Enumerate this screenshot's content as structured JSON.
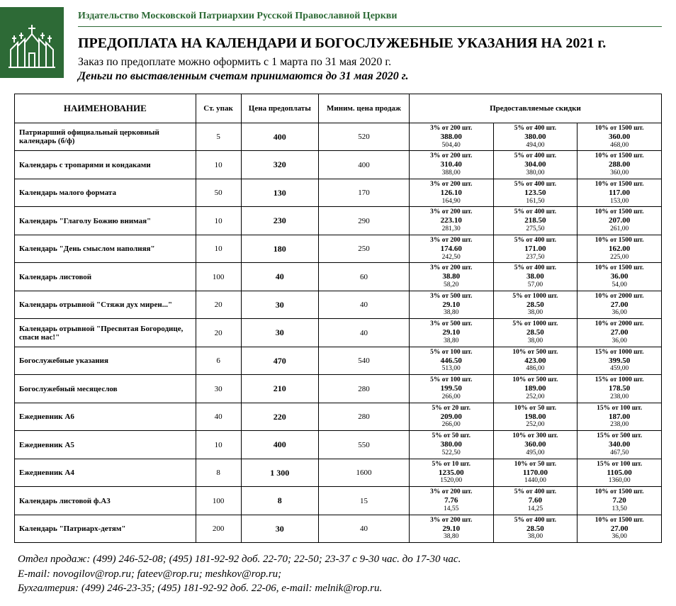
{
  "publisher": "Издательство Московской Патриархии Русской Православной Церкви",
  "title": "ПРЕДОПЛАТА НА КАЛЕНДАРИ И БОГОСЛУЖЕБНЫЕ УКАЗАНИЯ НА 2021 г.",
  "sub1": "Заказ по предоплате можно оформить с 1 марта по 31 мая 2020 г.",
  "sub2": "Деньги по выставленным счетам принимаются до 31 мая 2020 г.",
  "columns": {
    "name": "НАИМЕНОВАНИЕ",
    "pack": "Ст. упак",
    "prepay": "Цена предоплаты",
    "minsale": "Миним. цена продаж",
    "discounts": "Предоставляемые скидки"
  },
  "rows": [
    {
      "name": "Патриарший официальный церковный календарь (б/ф)",
      "pack": "5",
      "pre": "400",
      "min": "520",
      "d": [
        {
          "t": "3% от 200 шт.",
          "m": "388.00",
          "b": "504,40"
        },
        {
          "t": "5% от 400 шт.",
          "m": "380.00",
          "b": "494,00"
        },
        {
          "t": "10% от 1500 шт.",
          "m": "360.00",
          "b": "468,00"
        }
      ]
    },
    {
      "name": "Календарь с тропарями и кондаками",
      "pack": "10",
      "pre": "320",
      "min": "400",
      "d": [
        {
          "t": "3% от 200 шт.",
          "m": "310.40",
          "b": "388,00"
        },
        {
          "t": "5% от 400 шт.",
          "m": "304.00",
          "b": "380,00"
        },
        {
          "t": "10% от 1500 шт.",
          "m": "288.00",
          "b": "360,00"
        }
      ]
    },
    {
      "name": "Календарь малого формата",
      "pack": "50",
      "pre": "130",
      "min": "170",
      "d": [
        {
          "t": "3% от 200 шт.",
          "m": "126.10",
          "b": "164,90"
        },
        {
          "t": "5% от 400 шт.",
          "m": "123.50",
          "b": "161,50"
        },
        {
          "t": "10% от 1500 шт.",
          "m": "117.00",
          "b": "153,00"
        }
      ]
    },
    {
      "name": "Календарь \"Глаголу Божию внимая\"",
      "pack": "10",
      "pre": "230",
      "min": "290",
      "d": [
        {
          "t": "3% от 200 шт.",
          "m": "223.10",
          "b": "281,30"
        },
        {
          "t": "5% от 400 шт.",
          "m": "218.50",
          "b": "275,50"
        },
        {
          "t": "10% от 1500 шт.",
          "m": "207.00",
          "b": "261,00"
        }
      ]
    },
    {
      "name": "Календарь \"День смыслом наполняя\"",
      "pack": "10",
      "pre": "180",
      "min": "250",
      "d": [
        {
          "t": "3% от 200 шт.",
          "m": "174.60",
          "b": "242,50"
        },
        {
          "t": "5% от 400 шт.",
          "m": "171.00",
          "b": "237,50"
        },
        {
          "t": "10% от 1500 шт.",
          "m": "162.00",
          "b": "225,00"
        }
      ]
    },
    {
      "name": "Календарь листовой",
      "pack": "100",
      "pre": "40",
      "min": "60",
      "d": [
        {
          "t": "3% от 200 шт.",
          "m": "38.80",
          "b": "58,20"
        },
        {
          "t": "5% от 400 шт.",
          "m": "38.00",
          "b": "57,00"
        },
        {
          "t": "10% от 1500 шт.",
          "m": "36.00",
          "b": "54,00"
        }
      ]
    },
    {
      "name": "Календарь отрывной \"Стяжи дух мирен...\"",
      "pack": "20",
      "pre": "30",
      "min": "40",
      "d": [
        {
          "t": "3% от 500 шт.",
          "m": "29.10",
          "b": "38,80"
        },
        {
          "t": "5% от 1000 шт.",
          "m": "28.50",
          "b": "38,00"
        },
        {
          "t": "10% от 2000 шт.",
          "m": "27.00",
          "b": "36,00"
        }
      ]
    },
    {
      "name": "Календарь отрывной \"Пресвятая Богородице, спаси нас!\"",
      "pack": "20",
      "pre": "30",
      "min": "40",
      "d": [
        {
          "t": "3% от 500 шт.",
          "m": "29.10",
          "b": "38,80"
        },
        {
          "t": "5% от 1000 шт.",
          "m": "28.50",
          "b": "38,00"
        },
        {
          "t": "10% от 2000 шт.",
          "m": "27.00",
          "b": "36,00"
        }
      ]
    },
    {
      "name": "Богослужебные указания",
      "pack": "6",
      "pre": "470",
      "min": "540",
      "d": [
        {
          "t": "5% от 100 шт.",
          "m": "446.50",
          "b": "513,00"
        },
        {
          "t": "10% от 500 шт.",
          "m": "423.00",
          "b": "486,00"
        },
        {
          "t": "15% от 1000 шт.",
          "m": "399.50",
          "b": "459,00"
        }
      ]
    },
    {
      "name": "Богослужебный месяцеслов",
      "pack": "30",
      "pre": "210",
      "min": "280",
      "d": [
        {
          "t": "5% от 100 шт.",
          "m": "199.50",
          "b": "266,00"
        },
        {
          "t": "10% от 500 шт.",
          "m": "189.00",
          "b": "252,00"
        },
        {
          "t": "15% от 1000 шт.",
          "m": "178.50",
          "b": "238,00"
        }
      ]
    },
    {
      "name": "Ежедневник А6",
      "pack": "40",
      "pre": "220",
      "min": "280",
      "d": [
        {
          "t": "5% от 20 шт.",
          "m": "209.00",
          "b": "266,00"
        },
        {
          "t": "10% от 50 шт.",
          "m": "198.00",
          "b": "252,00"
        },
        {
          "t": "15% от 100 шт.",
          "m": "187.00",
          "b": "238,00"
        }
      ]
    },
    {
      "name": "Ежедневник А5",
      "pack": "10",
      "pre": "400",
      "min": "550",
      "d": [
        {
          "t": "5% от 50 шт.",
          "m": "380.00",
          "b": "522,50"
        },
        {
          "t": "10% от 300 шт.",
          "m": "360.00",
          "b": "495,00"
        },
        {
          "t": "15% от 500 шт.",
          "m": "340.00",
          "b": "467,50"
        }
      ]
    },
    {
      "name": "Ежедневник А4",
      "pack": "8",
      "pre": "1 300",
      "min": "1600",
      "d": [
        {
          "t": "5% от 10 шт.",
          "m": "1235.00",
          "b": "1520,00"
        },
        {
          "t": "10% от 50 шт.",
          "m": "1170.00",
          "b": "1440,00"
        },
        {
          "t": "15% от 100 шт.",
          "m": "1105.00",
          "b": "1360,00"
        }
      ]
    },
    {
      "name": "Календарь листовой ф.А3",
      "pack": "100",
      "pre": "8",
      "min": "15",
      "d": [
        {
          "t": "3% от 200 шт.",
          "m": "7.76",
          "b": "14,55"
        },
        {
          "t": "5% от 400 шт.",
          "m": "7.60",
          "b": "14,25"
        },
        {
          "t": "10% от 1500 шт.",
          "m": "7.20",
          "b": "13,50"
        }
      ]
    },
    {
      "name": "Календарь \"Патриарх-детям\"",
      "pack": "200",
      "pre": "30",
      "min": "40",
      "d": [
        {
          "t": "3% от 200 шт.",
          "m": "29.10",
          "b": "38,80"
        },
        {
          "t": "5% от 400 шт.",
          "m": "28.50",
          "b": "38,00"
        },
        {
          "t": "10% от 1500 шт.",
          "m": "27.00",
          "b": "36,00"
        }
      ]
    }
  ],
  "footer": {
    "l1": "Отдел продаж: (499) 246-52-08; (495) 181-92-92 доб. 22-70; 22-50; 23-37 с 9-30 час. до 17-30 час.",
    "l2": "E-mail: novogilov@rop.ru; fateev@rop.ru; meshkov@rop.ru;",
    "l3": "Бухгалтерия: (499) 246-23-35; (495) 181-92-92 доб. 22-06, e-mail: melnik@rop.ru."
  },
  "style": {
    "accent_color": "#2d6a36",
    "text_color": "#000000",
    "bg_color": "#ffffff",
    "col_widths_pct": [
      28,
      7,
      12,
      14,
      13,
      13,
      13
    ]
  }
}
